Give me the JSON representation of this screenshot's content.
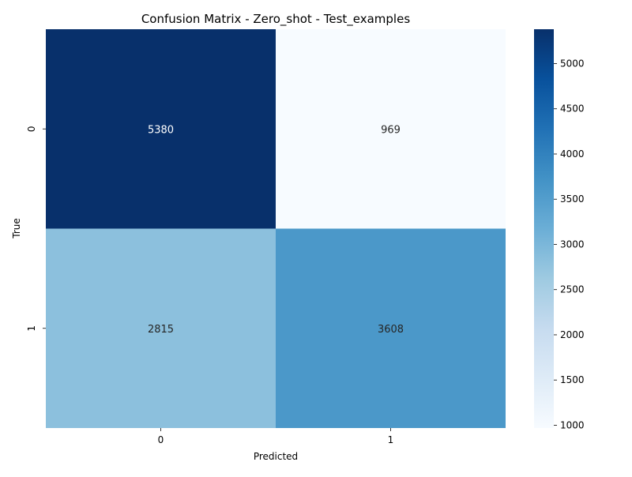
{
  "chart_data": {
    "type": "heatmap",
    "title": "Confusion Matrix - Zero_shot - Test_examples",
    "xlabel": "Predicted",
    "ylabel": "True",
    "x_categories": [
      "0",
      "1"
    ],
    "y_categories": [
      "0",
      "1"
    ],
    "values": [
      [
        5380,
        969
      ],
      [
        2815,
        3608
      ]
    ],
    "colormap": "Blues",
    "colorbar": {
      "ticks": [
        "1000",
        "1500",
        "2000",
        "2500",
        "3000",
        "3500",
        "4000",
        "4500",
        "5000"
      ],
      "range": [
        969,
        5380
      ]
    },
    "grid": false
  }
}
